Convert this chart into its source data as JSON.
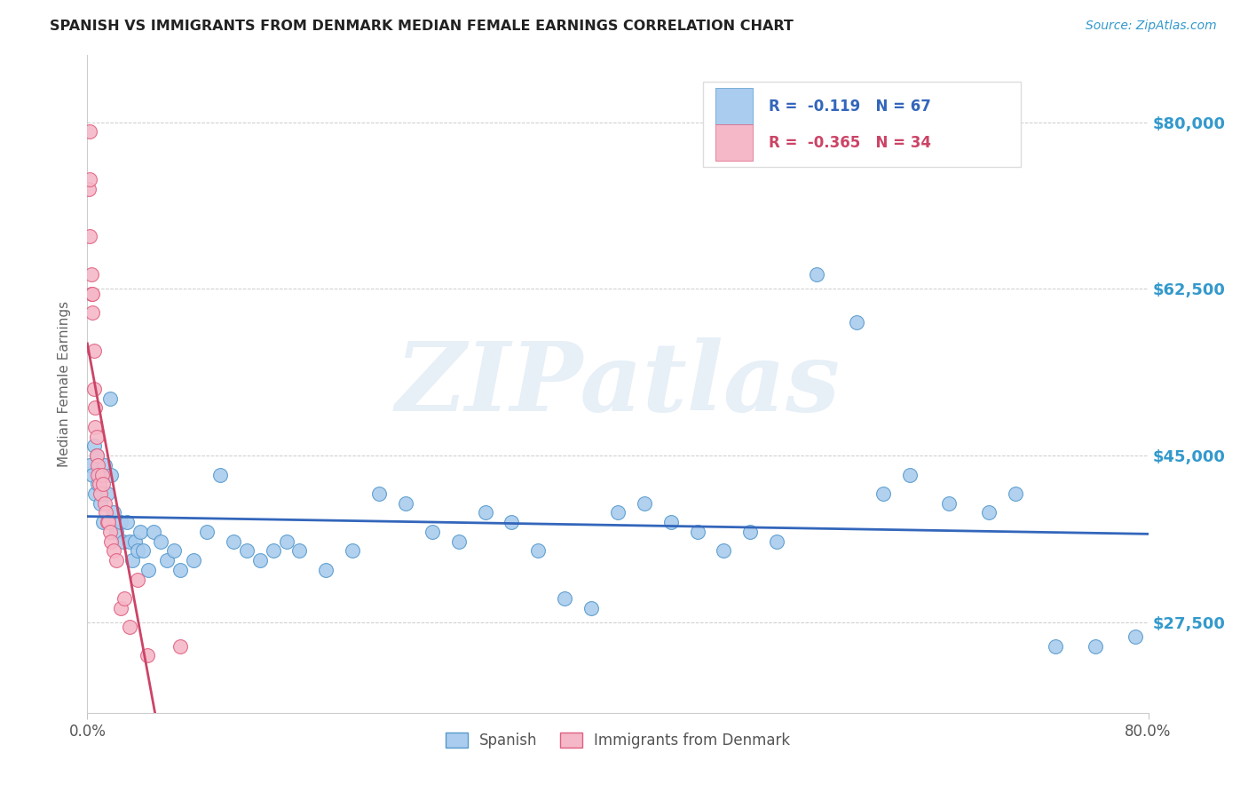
{
  "title": "SPANISH VS IMMIGRANTS FROM DENMARK MEDIAN FEMALE EARNINGS CORRELATION CHART",
  "source": "Source: ZipAtlas.com",
  "ylabel": "Median Female Earnings",
  "watermark": "ZIPatlas",
  "legend_blue_label": "Spanish",
  "legend_pink_label": "Immigrants from Denmark",
  "blue_R": "-0.119",
  "blue_N": "67",
  "pink_R": "-0.365",
  "pink_N": "34",
  "background_color": "#ffffff",
  "plot_bg_color": "#ffffff",
  "grid_color": "#cccccc",
  "blue_color": "#aaccee",
  "pink_color": "#f5b8c8",
  "blue_edge_color": "#5599cc",
  "pink_edge_color": "#e06080",
  "blue_line_color": "#3366bb",
  "pink_line_color": "#cc4466",
  "title_color": "#222222",
  "source_color": "#3399CC",
  "axis_label_color": "#666666",
  "tick_label_color_y": "#3399CC",
  "xlim": [
    0.0,
    0.8
  ],
  "ylim": [
    18000,
    87000
  ],
  "y_tick_vals": [
    27500,
    45000,
    62500,
    80000
  ],
  "y_tick_labels": [
    "$27,500",
    "$45,000",
    "$62,500",
    "$80,000"
  ],
  "blue_scatter_x": [
    0.002,
    0.004,
    0.005,
    0.006,
    0.007,
    0.008,
    0.009,
    0.01,
    0.012,
    0.013,
    0.015,
    0.017,
    0.018,
    0.02,
    0.022,
    0.025,
    0.027,
    0.03,
    0.032,
    0.034,
    0.036,
    0.038,
    0.04,
    0.042,
    0.046,
    0.05,
    0.055,
    0.06,
    0.065,
    0.07,
    0.08,
    0.09,
    0.1,
    0.11,
    0.12,
    0.13,
    0.14,
    0.15,
    0.16,
    0.18,
    0.2,
    0.22,
    0.24,
    0.26,
    0.28,
    0.3,
    0.32,
    0.34,
    0.36,
    0.38,
    0.4,
    0.42,
    0.44,
    0.46,
    0.48,
    0.5,
    0.52,
    0.55,
    0.58,
    0.6,
    0.62,
    0.65,
    0.68,
    0.7,
    0.73,
    0.76,
    0.79
  ],
  "blue_scatter_y": [
    44000,
    43000,
    46000,
    41000,
    45000,
    42000,
    43000,
    40000,
    38000,
    44000,
    41000,
    51000,
    43000,
    39000,
    37000,
    38000,
    36000,
    38000,
    36000,
    34000,
    36000,
    35000,
    37000,
    35000,
    33000,
    37000,
    36000,
    34000,
    35000,
    33000,
    34000,
    37000,
    43000,
    36000,
    35000,
    34000,
    35000,
    36000,
    35000,
    33000,
    35000,
    41000,
    40000,
    37000,
    36000,
    39000,
    38000,
    35000,
    30000,
    29000,
    39000,
    40000,
    38000,
    37000,
    35000,
    37000,
    36000,
    64000,
    59000,
    41000,
    43000,
    40000,
    39000,
    41000,
    25000,
    25000,
    26000
  ],
  "pink_scatter_x": [
    0.001,
    0.0015,
    0.002,
    0.002,
    0.003,
    0.003,
    0.004,
    0.004,
    0.005,
    0.005,
    0.006,
    0.006,
    0.007,
    0.007,
    0.008,
    0.008,
    0.009,
    0.01,
    0.011,
    0.012,
    0.013,
    0.014,
    0.015,
    0.016,
    0.017,
    0.018,
    0.02,
    0.022,
    0.025,
    0.028,
    0.032,
    0.038,
    0.045,
    0.07
  ],
  "pink_scatter_y": [
    73000,
    68000,
    79000,
    74000,
    64000,
    62000,
    62000,
    60000,
    56000,
    52000,
    50000,
    48000,
    47000,
    45000,
    44000,
    43000,
    42000,
    41000,
    43000,
    42000,
    40000,
    39000,
    38000,
    38000,
    37000,
    36000,
    35000,
    34000,
    29000,
    30000,
    27000,
    32000,
    24000,
    25000
  ]
}
